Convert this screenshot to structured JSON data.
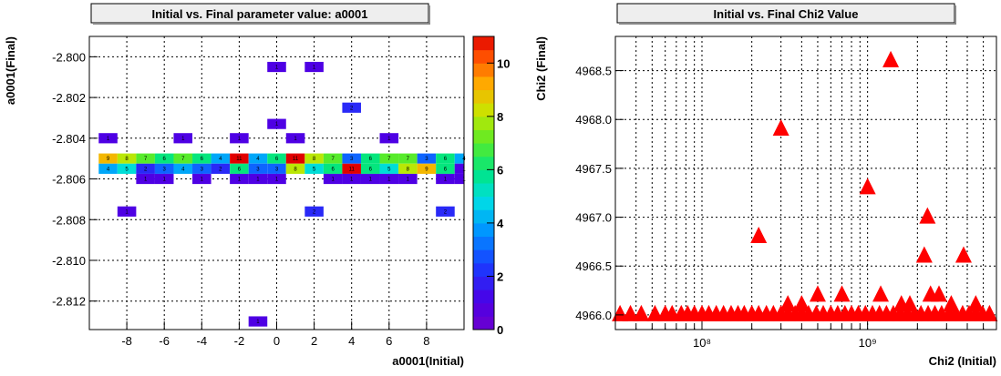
{
  "chart_data": [
    {
      "type": "heatmap",
      "title": "Initial vs. Final parameter value: a0001",
      "xlabel": "a0001(Initial)",
      "ylabel": "a0001(Final)",
      "xlim": [
        -10,
        10
      ],
      "ylim": [
        -2.8134,
        -2.799
      ],
      "xticks": [
        -8,
        -6,
        -4,
        -2,
        0,
        2,
        4,
        6,
        8
      ],
      "yticks": [
        -2.812,
        -2.81,
        -2.808,
        -2.806,
        -2.804,
        -2.802,
        -2.8
      ],
      "ytick_labels": [
        "-2.812",
        "-2.810",
        "-2.808",
        "-2.806",
        "-2.804",
        "-2.802",
        "-2.800"
      ],
      "zlim": [
        0,
        11
      ],
      "colorbar_ticks": [
        0,
        2,
        4,
        6,
        8,
        10
      ],
      "grid": true,
      "x_bin_width": 1,
      "y_bin_width": 0.0005,
      "cells": [
        {
          "x": -9,
          "y": -2.805,
          "z": 9
        },
        {
          "x": -8,
          "y": -2.805,
          "z": 8
        },
        {
          "x": -7,
          "y": -2.805,
          "z": 7
        },
        {
          "x": -6,
          "y": -2.805,
          "z": 6
        },
        {
          "x": -5,
          "y": -2.805,
          "z": 7
        },
        {
          "x": -4,
          "y": -2.805,
          "z": 6
        },
        {
          "x": -3,
          "y": -2.805,
          "z": 4
        },
        {
          "x": -2,
          "y": -2.805,
          "z": 11
        },
        {
          "x": -1,
          "y": -2.805,
          "z": 4
        },
        {
          "x": 0,
          "y": -2.805,
          "z": 6
        },
        {
          "x": 1,
          "y": -2.805,
          "z": 11
        },
        {
          "x": 2,
          "y": -2.805,
          "z": 8
        },
        {
          "x": 3,
          "y": -2.805,
          "z": 7
        },
        {
          "x": 4,
          "y": -2.805,
          "z": 3
        },
        {
          "x": 5,
          "y": -2.805,
          "z": 6
        },
        {
          "x": 6,
          "y": -2.805,
          "z": 7
        },
        {
          "x": 7,
          "y": -2.805,
          "z": 7
        },
        {
          "x": 8,
          "y": -2.805,
          "z": 3
        },
        {
          "x": 9,
          "y": -2.805,
          "z": 6
        },
        {
          "x": 10,
          "y": -2.805,
          "z": 4
        },
        {
          "x": -9,
          "y": -2.8055,
          "z": 4
        },
        {
          "x": -8,
          "y": -2.8055,
          "z": 5
        },
        {
          "x": -7,
          "y": -2.8055,
          "z": 2
        },
        {
          "x": -6,
          "y": -2.8055,
          "z": 3
        },
        {
          "x": -5,
          "y": -2.8055,
          "z": 4
        },
        {
          "x": -4,
          "y": -2.8055,
          "z": 3
        },
        {
          "x": -3,
          "y": -2.8055,
          "z": 2
        },
        {
          "x": -2,
          "y": -2.8055,
          "z": 6
        },
        {
          "x": -1,
          "y": -2.8055,
          "z": 3
        },
        {
          "x": 0,
          "y": -2.8055,
          "z": 3
        },
        {
          "x": 1,
          "y": -2.8055,
          "z": 8
        },
        {
          "x": 2,
          "y": -2.8055,
          "z": 5
        },
        {
          "x": 3,
          "y": -2.8055,
          "z": 6
        },
        {
          "x": 4,
          "y": -2.8055,
          "z": 11
        },
        {
          "x": 5,
          "y": -2.8055,
          "z": 6
        },
        {
          "x": 6,
          "y": -2.8055,
          "z": 5
        },
        {
          "x": 7,
          "y": -2.8055,
          "z": 8
        },
        {
          "x": 8,
          "y": -2.8055,
          "z": 9
        },
        {
          "x": 9,
          "y": -2.8055,
          "z": 6
        },
        {
          "x": 10,
          "y": -2.8055,
          "z": 1
        },
        {
          "x": -9,
          "y": -2.804,
          "z": 1
        },
        {
          "x": -5,
          "y": -2.804,
          "z": 1
        },
        {
          "x": -2,
          "y": -2.804,
          "z": 1
        },
        {
          "x": 1,
          "y": -2.804,
          "z": 1
        },
        {
          "x": 6,
          "y": -2.804,
          "z": 1
        },
        {
          "x": -7,
          "y": -2.806,
          "z": 1
        },
        {
          "x": -6,
          "y": -2.806,
          "z": 1
        },
        {
          "x": -4,
          "y": -2.806,
          "z": 1
        },
        {
          "x": -2,
          "y": -2.806,
          "z": 1
        },
        {
          "x": -1,
          "y": -2.806,
          "z": 1
        },
        {
          "x": 0,
          "y": -2.806,
          "z": 1
        },
        {
          "x": 3,
          "y": -2.806,
          "z": 1
        },
        {
          "x": 4,
          "y": -2.806,
          "z": 1
        },
        {
          "x": 5,
          "y": -2.806,
          "z": 1
        },
        {
          "x": 6,
          "y": -2.806,
          "z": 1
        },
        {
          "x": 7,
          "y": -2.806,
          "z": 1
        },
        {
          "x": 9,
          "y": -2.806,
          "z": 1
        },
        {
          "x": 10,
          "y": -2.806,
          "z": 1
        },
        {
          "x": 0,
          "y": -2.8005,
          "z": 1
        },
        {
          "x": 2,
          "y": -2.8005,
          "z": 1
        },
        {
          "x": 4,
          "y": -2.8025,
          "z": 2
        },
        {
          "x": 0,
          "y": -2.8033,
          "z": 1
        },
        {
          "x": -8,
          "y": -2.8076,
          "z": 1
        },
        {
          "x": 2,
          "y": -2.8076,
          "z": 2
        },
        {
          "x": 9,
          "y": -2.8076,
          "z": 2
        },
        {
          "x": -1,
          "y": -2.813,
          "z": 1
        }
      ]
    },
    {
      "type": "scatter",
      "title": "Initial vs. Final Chi2 Value",
      "xlabel": "Chi2 (Initial)",
      "ylabel": "Chi2 (Final)",
      "x_scale": "log",
      "xlim": [
        30000000,
        6000000000
      ],
      "ylim": [
        4965.85,
        4968.85
      ],
      "yticks": [
        4966.0,
        4966.5,
        4967.0,
        4967.5,
        4968.0,
        4968.5
      ],
      "ytick_labels": [
        "4966.0",
        "4966.5",
        "4967.0",
        "4967.5",
        "4968.0",
        "4968.5"
      ],
      "xtick_labels": [
        "10⁸",
        "10⁹"
      ],
      "grid": true,
      "marker": "triangle",
      "color": "#ff0000",
      "points": [
        {
          "x": 1380000000,
          "y": 4968.6
        },
        {
          "x": 300000000,
          "y": 4967.9
        },
        {
          "x": 1000000000,
          "y": 4967.3
        },
        {
          "x": 2300000000,
          "y": 4967.0
        },
        {
          "x": 220000000,
          "y": 4966.8
        },
        {
          "x": 2200000000,
          "y": 4966.6
        },
        {
          "x": 3800000000,
          "y": 4966.6
        },
        {
          "x": 500000000,
          "y": 4966.2
        },
        {
          "x": 700000000,
          "y": 4966.2
        },
        {
          "x": 1200000000,
          "y": 4966.2
        },
        {
          "x": 2400000000,
          "y": 4966.2
        },
        {
          "x": 2700000000,
          "y": 4966.2
        },
        {
          "x": 330000000,
          "y": 4966.1
        },
        {
          "x": 400000000,
          "y": 4966.1
        },
        {
          "x": 1600000000,
          "y": 4966.1
        },
        {
          "x": 1800000000,
          "y": 4966.1
        },
        {
          "x": 3200000000,
          "y": 4966.1
        },
        {
          "x": 4500000000,
          "y": 4966.1
        },
        {
          "x": 32000000,
          "y": 4966.0
        },
        {
          "x": 37000000,
          "y": 4966.0
        },
        {
          "x": 43000000,
          "y": 4966.0
        },
        {
          "x": 52000000,
          "y": 4966.0
        },
        {
          "x": 60000000,
          "y": 4966.0
        },
        {
          "x": 66000000,
          "y": 4966.0
        },
        {
          "x": 75000000,
          "y": 4966.0
        },
        {
          "x": 82000000,
          "y": 4966.0
        },
        {
          "x": 90000000,
          "y": 4966.0
        },
        {
          "x": 100000000,
          "y": 4966.0
        },
        {
          "x": 110000000,
          "y": 4966.0
        },
        {
          "x": 122000000,
          "y": 4966.0
        },
        {
          "x": 135000000,
          "y": 4966.0
        },
        {
          "x": 150000000,
          "y": 4966.0
        },
        {
          "x": 165000000,
          "y": 4966.0
        },
        {
          "x": 180000000,
          "y": 4966.0
        },
        {
          "x": 200000000,
          "y": 4966.0
        },
        {
          "x": 220000000,
          "y": 4966.0
        },
        {
          "x": 245000000,
          "y": 4966.0
        },
        {
          "x": 270000000,
          "y": 4966.0
        },
        {
          "x": 300000000,
          "y": 4966.0
        },
        {
          "x": 330000000,
          "y": 4966.0
        },
        {
          "x": 365000000,
          "y": 4966.0
        },
        {
          "x": 400000000,
          "y": 4966.0
        },
        {
          "x": 440000000,
          "y": 4966.0
        },
        {
          "x": 490000000,
          "y": 4966.0
        },
        {
          "x": 540000000,
          "y": 4966.0
        },
        {
          "x": 600000000,
          "y": 4966.0
        },
        {
          "x": 660000000,
          "y": 4966.0
        },
        {
          "x": 730000000,
          "y": 4966.0
        },
        {
          "x": 800000000,
          "y": 4966.0
        },
        {
          "x": 880000000,
          "y": 4966.0
        },
        {
          "x": 970000000,
          "y": 4966.0
        },
        {
          "x": 1070000000,
          "y": 4966.0
        },
        {
          "x": 1180000000,
          "y": 4966.0
        },
        {
          "x": 1300000000,
          "y": 4966.0
        },
        {
          "x": 1430000000,
          "y": 4966.0
        },
        {
          "x": 1580000000,
          "y": 4966.0
        },
        {
          "x": 1740000000,
          "y": 4966.0
        },
        {
          "x": 1920000000,
          "y": 4966.0
        },
        {
          "x": 2100000000,
          "y": 4966.0
        },
        {
          "x": 2320000000,
          "y": 4966.0
        },
        {
          "x": 2550000000,
          "y": 4966.0
        },
        {
          "x": 2800000000,
          "y": 4966.0
        },
        {
          "x": 3100000000,
          "y": 4966.0
        },
        {
          "x": 3400000000,
          "y": 4966.0
        },
        {
          "x": 3750000000,
          "y": 4966.0
        },
        {
          "x": 4100000000,
          "y": 4966.0
        },
        {
          "x": 4500000000,
          "y": 4966.0
        },
        {
          "x": 4950000000,
          "y": 4966.0
        },
        {
          "x": 5450000000,
          "y": 4966.0
        }
      ]
    }
  ]
}
